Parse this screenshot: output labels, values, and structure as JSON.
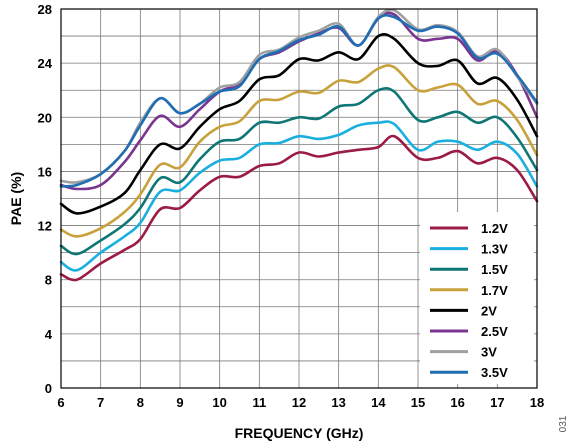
{
  "figure_id": "031",
  "chart_data": {
    "type": "line",
    "xlabel": "FREQUENCY (GHz)",
    "ylabel": "PAE (%)",
    "xlim": [
      6,
      18
    ],
    "ylim": [
      0,
      28
    ],
    "xticks": [
      6,
      7,
      8,
      9,
      10,
      11,
      12,
      13,
      14,
      15,
      16,
      17,
      18
    ],
    "yticks": [
      0,
      4,
      8,
      12,
      16,
      20,
      24,
      28
    ],
    "grid": true,
    "legend_position": "bottom-right",
    "x": [
      6.0,
      6.4,
      7.0,
      7.6,
      8.0,
      8.5,
      9.0,
      9.5,
      10.0,
      10.5,
      11.0,
      11.5,
      12.0,
      12.5,
      13.0,
      13.5,
      14.0,
      14.4,
      15.0,
      15.5,
      16.0,
      16.5,
      17.0,
      17.5,
      18.0
    ],
    "series": [
      {
        "name": "1.2V",
        "color": "#9B1B45",
        "values": [
          8.4,
          8.0,
          9.2,
          10.2,
          11.0,
          13.2,
          13.3,
          14.6,
          15.6,
          15.6,
          16.4,
          16.6,
          17.4,
          17.1,
          17.4,
          17.6,
          17.8,
          18.6,
          17.0,
          17.0,
          17.5,
          16.6,
          17.0,
          16.1,
          13.8
        ]
      },
      {
        "name": "1.3V",
        "color": "#1AAFDF",
        "values": [
          9.3,
          8.7,
          10.0,
          11.2,
          12.2,
          14.5,
          14.6,
          15.9,
          16.8,
          17.0,
          18.0,
          18.1,
          18.6,
          18.4,
          18.7,
          19.4,
          19.6,
          19.5,
          17.6,
          18.2,
          18.2,
          17.6,
          18.2,
          17.3,
          14.9
        ]
      },
      {
        "name": "1.5V",
        "color": "#0E7775",
        "values": [
          10.5,
          9.9,
          10.9,
          12.1,
          13.3,
          15.5,
          15.2,
          16.9,
          18.2,
          18.4,
          19.6,
          19.6,
          20.0,
          19.9,
          20.8,
          21.0,
          22.0,
          21.9,
          19.8,
          20.0,
          20.4,
          19.6,
          20.0,
          18.5,
          16.1
        ]
      },
      {
        "name": "1.7V",
        "color": "#C9A13B",
        "values": [
          11.7,
          11.2,
          11.8,
          13.0,
          14.3,
          16.5,
          16.3,
          18.2,
          19.3,
          19.7,
          21.2,
          21.3,
          21.9,
          21.8,
          22.7,
          22.6,
          23.6,
          23.7,
          22.0,
          22.2,
          22.4,
          21.0,
          21.2,
          19.8,
          17.2
        ]
      },
      {
        "name": "2V",
        "color": "#000000",
        "values": [
          13.6,
          12.9,
          13.4,
          14.4,
          16.1,
          18.0,
          17.7,
          19.3,
          20.6,
          21.2,
          22.8,
          23.1,
          24.3,
          24.2,
          24.8,
          24.3,
          26.0,
          25.8,
          24.0,
          23.8,
          24.2,
          22.5,
          22.9,
          21.3,
          18.6
        ]
      },
      {
        "name": "2.5V",
        "color": "#7A3590",
        "values": [
          15.0,
          14.7,
          15.0,
          16.7,
          18.3,
          20.1,
          19.3,
          20.6,
          21.9,
          22.5,
          24.3,
          24.8,
          25.6,
          26.2,
          26.6,
          25.3,
          27.3,
          27.6,
          25.8,
          25.8,
          25.8,
          24.2,
          24.9,
          23.1,
          20.0
        ]
      },
      {
        "name": "3V",
        "color": "#9FA0A2",
        "values": [
          15.3,
          15.2,
          15.8,
          17.5,
          19.6,
          21.4,
          20.3,
          21.0,
          22.2,
          22.6,
          24.6,
          25.0,
          25.9,
          26.4,
          26.9,
          25.3,
          27.4,
          27.9,
          26.5,
          26.8,
          26.3,
          24.5,
          25.0,
          23.0,
          21.0
        ]
      },
      {
        "name": "3.5V",
        "color": "#1F6DB3",
        "values": [
          14.9,
          15.0,
          15.8,
          17.5,
          19.4,
          21.4,
          20.3,
          21.0,
          21.9,
          22.3,
          24.3,
          24.9,
          25.7,
          26.1,
          26.7,
          25.3,
          27.3,
          27.4,
          26.4,
          26.7,
          26.2,
          24.4,
          24.7,
          23.1,
          21.1
        ]
      }
    ]
  }
}
